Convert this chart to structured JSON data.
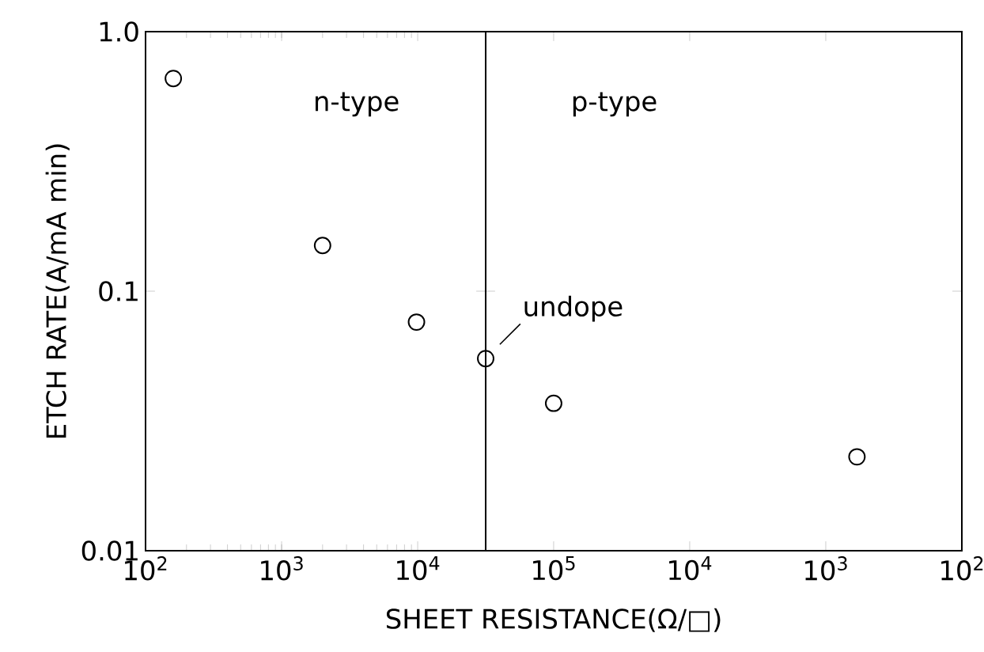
{
  "chart_data": [
    {
      "type": "scatter",
      "xlabel": "SHEET RESISTANCE(Ω/□)",
      "ylabel": "ETCH RATE(A/mA min)",
      "x": [
        160,
        2000,
        9800,
        31600
      ],
      "values": [
        0.66,
        0.15,
        0.076,
        0.055
      ],
      "color": "#000000",
      "marker": "circle",
      "log": "xy",
      "xlim": [
        100,
        31600
      ],
      "ylim": [
        0.01,
        1
      ],
      "xticks": [
        {
          "value": 100,
          "label": "10$^{2}$"
        },
        {
          "value": 1000,
          "label": "10$^{3}$"
        },
        {
          "value": 10000,
          "label": "10$^{4}$"
        }
      ],
      "yticks": [
        {
          "value": 1,
          "label": "1.0"
        },
        0.1,
        0.01
      ],
      "annotations": [
        "n-type",
        {
          "text": "undope",
          "x": 31600,
          "y": 0.055
        }
      ]
    },
    {
      "type": "scatter",
      "x": [
        100000,
        590
      ],
      "values": [
        0.037,
        0.023
      ],
      "color": "#000000",
      "marker": "circle",
      "log": "xy",
      "xlim": [
        316000,
        100
      ],
      "ylim": [
        0.01,
        1
      ],
      "xticks": [
        {
          "value": 100000,
          "label": "10$^{5}$"
        },
        {
          "value": 10000,
          "label": "10$^{4}$"
        },
        {
          "value": 1000,
          "label": "10$^{3}$"
        },
        {
          "value": 100,
          "label": "10$^{2}$"
        }
      ],
      "yticks": [
        1,
        0.1,
        0.01
      ],
      "tick_labels": "x",
      "annotations": [
        "p-type"
      ]
    }
  ]
}
